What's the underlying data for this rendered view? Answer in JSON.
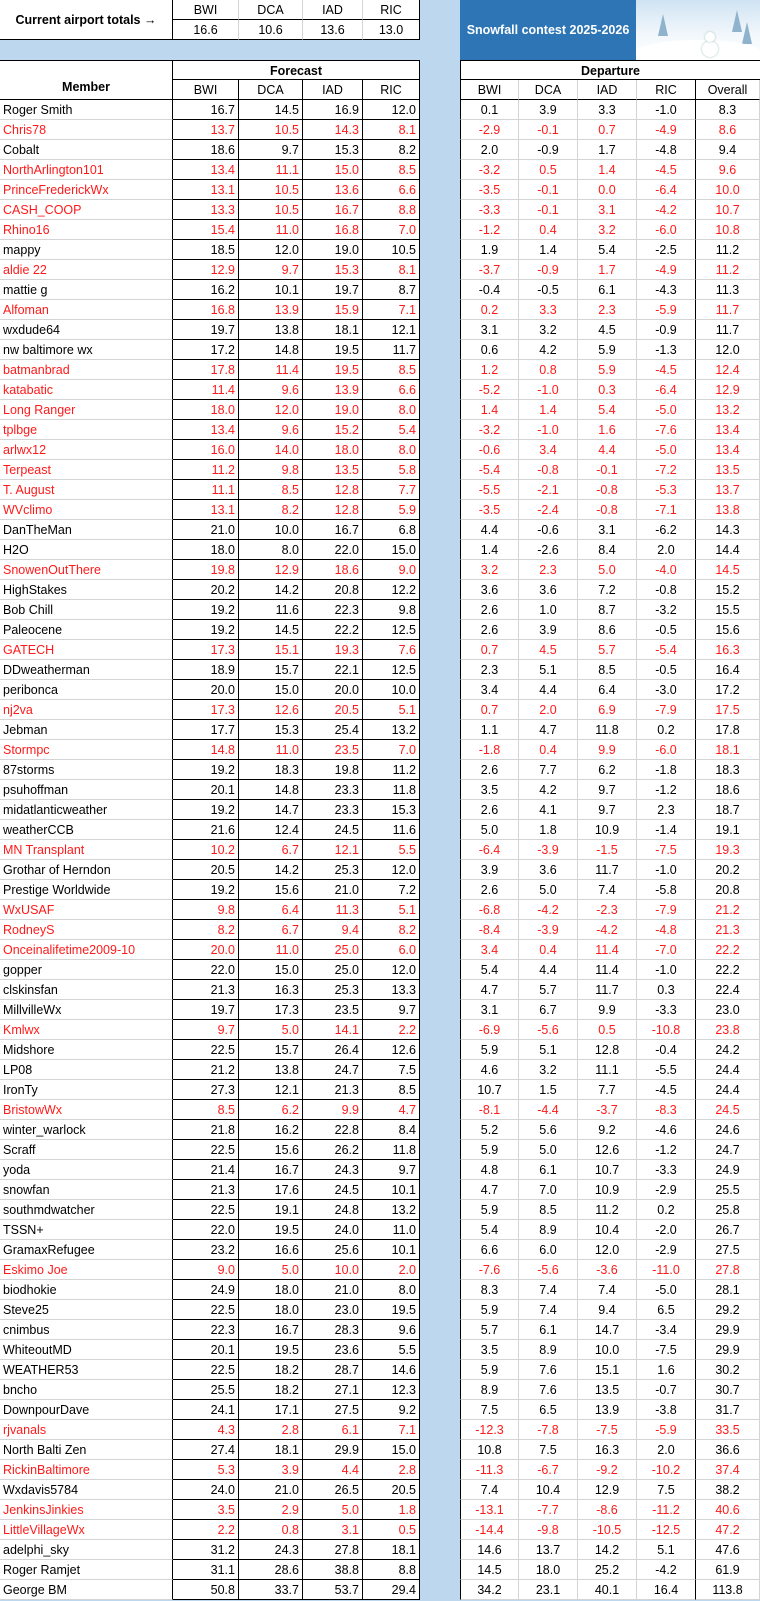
{
  "top": {
    "label": "Current airport totals →",
    "airports": [
      "BWI",
      "DCA",
      "IAD",
      "RIC"
    ],
    "totals": [
      "16.6",
      "10.6",
      "13.6",
      "13.0"
    ]
  },
  "title": "Snowfall contest 2025-2026",
  "header": {
    "member": "Member",
    "forecast": "Forecast",
    "departure": "Departure",
    "forecast_cols": [
      "BWI",
      "DCA",
      "IAD",
      "RIC"
    ],
    "departure_cols": [
      "BWI",
      "DCA",
      "IAD",
      "RIC",
      "Overall"
    ]
  },
  "colors": {
    "red": "#ff1a1a",
    "title_bg": "#2e75b6",
    "gap": "#bdd7ee"
  },
  "rows": [
    {
      "name": "Roger Smith",
      "red": false,
      "f": [
        "16.7",
        "14.5",
        "16.9",
        "12.0"
      ],
      "d": [
        "0.1",
        "3.9",
        "3.3",
        "-1.0",
        "8.3"
      ]
    },
    {
      "name": "Chris78",
      "red": true,
      "f": [
        "13.7",
        "10.5",
        "14.3",
        "8.1"
      ],
      "d": [
        "-2.9",
        "-0.1",
        "0.7",
        "-4.9",
        "8.6"
      ]
    },
    {
      "name": "Cobalt",
      "red": false,
      "f": [
        "18.6",
        "9.7",
        "15.3",
        "8.2"
      ],
      "d": [
        "2.0",
        "-0.9",
        "1.7",
        "-4.8",
        "9.4"
      ]
    },
    {
      "name": "NorthArlington101",
      "red": true,
      "f": [
        "13.4",
        "11.1",
        "15.0",
        "8.5"
      ],
      "d": [
        "-3.2",
        "0.5",
        "1.4",
        "-4.5",
        "9.6"
      ]
    },
    {
      "name": "PrinceFrederickWx",
      "red": true,
      "f": [
        "13.1",
        "10.5",
        "13.6",
        "6.6"
      ],
      "d": [
        "-3.5",
        "-0.1",
        "0.0",
        "-6.4",
        "10.0"
      ]
    },
    {
      "name": "CASH_COOP",
      "red": true,
      "f": [
        "13.3",
        "10.5",
        "16.7",
        "8.8"
      ],
      "d": [
        "-3.3",
        "-0.1",
        "3.1",
        "-4.2",
        "10.7"
      ]
    },
    {
      "name": "Rhino16",
      "red": true,
      "f": [
        "15.4",
        "11.0",
        "16.8",
        "7.0"
      ],
      "d": [
        "-1.2",
        "0.4",
        "3.2",
        "-6.0",
        "10.8"
      ]
    },
    {
      "name": "mappy",
      "red": false,
      "f": [
        "18.5",
        "12.0",
        "19.0",
        "10.5"
      ],
      "d": [
        "1.9",
        "1.4",
        "5.4",
        "-2.5",
        "11.2"
      ]
    },
    {
      "name": "aldie 22",
      "red": true,
      "f": [
        "12.9",
        "9.7",
        "15.3",
        "8.1"
      ],
      "d": [
        "-3.7",
        "-0.9",
        "1.7",
        "-4.9",
        "11.2"
      ]
    },
    {
      "name": "mattie g",
      "red": false,
      "f": [
        "16.2",
        "10.1",
        "19.7",
        "8.7"
      ],
      "d": [
        "-0.4",
        "-0.5",
        "6.1",
        "-4.3",
        "11.3"
      ]
    },
    {
      "name": "Alfoman",
      "red": true,
      "f": [
        "16.8",
        "13.9",
        "15.9",
        "7.1"
      ],
      "d": [
        "0.2",
        "3.3",
        "2.3",
        "-5.9",
        "11.7"
      ]
    },
    {
      "name": "wxdude64",
      "red": false,
      "f": [
        "19.7",
        "13.8",
        "18.1",
        "12.1"
      ],
      "d": [
        "3.1",
        "3.2",
        "4.5",
        "-0.9",
        "11.7"
      ]
    },
    {
      "name": "nw baltimore wx",
      "red": false,
      "f": [
        "17.2",
        "14.8",
        "19.5",
        "11.7"
      ],
      "d": [
        "0.6",
        "4.2",
        "5.9",
        "-1.3",
        "12.0"
      ]
    },
    {
      "name": "batmanbrad",
      "red": true,
      "f": [
        "17.8",
        "11.4",
        "19.5",
        "8.5"
      ],
      "d": [
        "1.2",
        "0.8",
        "5.9",
        "-4.5",
        "12.4"
      ]
    },
    {
      "name": "katabatic",
      "red": true,
      "f": [
        "11.4",
        "9.6",
        "13.9",
        "6.6"
      ],
      "d": [
        "-5.2",
        "-1.0",
        "0.3",
        "-6.4",
        "12.9"
      ]
    },
    {
      "name": "Long Ranger",
      "red": true,
      "f": [
        "18.0",
        "12.0",
        "19.0",
        "8.0"
      ],
      "d": [
        "1.4",
        "1.4",
        "5.4",
        "-5.0",
        "13.2"
      ]
    },
    {
      "name": "tplbge",
      "red": true,
      "f": [
        "13.4",
        "9.6",
        "15.2",
        "5.4"
      ],
      "d": [
        "-3.2",
        "-1.0",
        "1.6",
        "-7.6",
        "13.4"
      ]
    },
    {
      "name": "arlwx12",
      "red": true,
      "f": [
        "16.0",
        "14.0",
        "18.0",
        "8.0"
      ],
      "d": [
        "-0.6",
        "3.4",
        "4.4",
        "-5.0",
        "13.4"
      ]
    },
    {
      "name": "Terpeast",
      "red": true,
      "f": [
        "11.2",
        "9.8",
        "13.5",
        "5.8"
      ],
      "d": [
        "-5.4",
        "-0.8",
        "-0.1",
        "-7.2",
        "13.5"
      ]
    },
    {
      "name": "T. August",
      "red": true,
      "f": [
        "11.1",
        "8.5",
        "12.8",
        "7.7"
      ],
      "d": [
        "-5.5",
        "-2.1",
        "-0.8",
        "-5.3",
        "13.7"
      ]
    },
    {
      "name": "WVclimo",
      "red": true,
      "f": [
        "13.1",
        "8.2",
        "12.8",
        "5.9"
      ],
      "d": [
        "-3.5",
        "-2.4",
        "-0.8",
        "-7.1",
        "13.8"
      ]
    },
    {
      "name": "DanTheMan",
      "red": false,
      "f": [
        "21.0",
        "10.0",
        "16.7",
        "6.8"
      ],
      "d": [
        "4.4",
        "-0.6",
        "3.1",
        "-6.2",
        "14.3"
      ]
    },
    {
      "name": "H2O",
      "red": false,
      "f": [
        "18.0",
        "8.0",
        "22.0",
        "15.0"
      ],
      "d": [
        "1.4",
        "-2.6",
        "8.4",
        "2.0",
        "14.4"
      ]
    },
    {
      "name": "SnowenOutThere",
      "red": true,
      "f": [
        "19.8",
        "12.9",
        "18.6",
        "9.0"
      ],
      "d": [
        "3.2",
        "2.3",
        "5.0",
        "-4.0",
        "14.5"
      ]
    },
    {
      "name": "HighStakes",
      "red": false,
      "f": [
        "20.2",
        "14.2",
        "20.8",
        "12.2"
      ],
      "d": [
        "3.6",
        "3.6",
        "7.2",
        "-0.8",
        "15.2"
      ]
    },
    {
      "name": "Bob Chill",
      "red": false,
      "f": [
        "19.2",
        "11.6",
        "22.3",
        "9.8"
      ],
      "d": [
        "2.6",
        "1.0",
        "8.7",
        "-3.2",
        "15.5"
      ]
    },
    {
      "name": "Paleocene",
      "red": false,
      "f": [
        "19.2",
        "14.5",
        "22.2",
        "12.5"
      ],
      "d": [
        "2.6",
        "3.9",
        "8.6",
        "-0.5",
        "15.6"
      ]
    },
    {
      "name": "GATECH",
      "red": true,
      "f": [
        "17.3",
        "15.1",
        "19.3",
        "7.6"
      ],
      "d": [
        "0.7",
        "4.5",
        "5.7",
        "-5.4",
        "16.3"
      ]
    },
    {
      "name": "DDweatherman",
      "red": false,
      "f": [
        "18.9",
        "15.7",
        "22.1",
        "12.5"
      ],
      "d": [
        "2.3",
        "5.1",
        "8.5",
        "-0.5",
        "16.4"
      ]
    },
    {
      "name": "peribonca",
      "red": false,
      "f": [
        "20.0",
        "15.0",
        "20.0",
        "10.0"
      ],
      "d": [
        "3.4",
        "4.4",
        "6.4",
        "-3.0",
        "17.2"
      ]
    },
    {
      "name": "nj2va",
      "red": true,
      "f": [
        "17.3",
        "12.6",
        "20.5",
        "5.1"
      ],
      "d": [
        "0.7",
        "2.0",
        "6.9",
        "-7.9",
        "17.5"
      ]
    },
    {
      "name": "Jebman",
      "red": false,
      "f": [
        "17.7",
        "15.3",
        "25.4",
        "13.2"
      ],
      "d": [
        "1.1",
        "4.7",
        "11.8",
        "0.2",
        "17.8"
      ]
    },
    {
      "name": "Stormpc",
      "red": true,
      "f": [
        "14.8",
        "11.0",
        "23.5",
        "7.0"
      ],
      "d": [
        "-1.8",
        "0.4",
        "9.9",
        "-6.0",
        "18.1"
      ]
    },
    {
      "name": "87storms",
      "red": false,
      "f": [
        "19.2",
        "18.3",
        "19.8",
        "11.2"
      ],
      "d": [
        "2.6",
        "7.7",
        "6.2",
        "-1.8",
        "18.3"
      ]
    },
    {
      "name": "psuhoffman",
      "red": false,
      "f": [
        "20.1",
        "14.8",
        "23.3",
        "11.8"
      ],
      "d": [
        "3.5",
        "4.2",
        "9.7",
        "-1.2",
        "18.6"
      ]
    },
    {
      "name": "midatlanticweather",
      "red": false,
      "f": [
        "19.2",
        "14.7",
        "23.3",
        "15.3"
      ],
      "d": [
        "2.6",
        "4.1",
        "9.7",
        "2.3",
        "18.7"
      ]
    },
    {
      "name": "weatherCCB",
      "red": false,
      "f": [
        "21.6",
        "12.4",
        "24.5",
        "11.6"
      ],
      "d": [
        "5.0",
        "1.8",
        "10.9",
        "-1.4",
        "19.1"
      ]
    },
    {
      "name": "MN Transplant",
      "red": true,
      "f": [
        "10.2",
        "6.7",
        "12.1",
        "5.5"
      ],
      "d": [
        "-6.4",
        "-3.9",
        "-1.5",
        "-7.5",
        "19.3"
      ]
    },
    {
      "name": "Grothar of Herndon",
      "red": false,
      "f": [
        "20.5",
        "14.2",
        "25.3",
        "12.0"
      ],
      "d": [
        "3.9",
        "3.6",
        "11.7",
        "-1.0",
        "20.2"
      ]
    },
    {
      "name": "Prestige Worldwide",
      "red": false,
      "f": [
        "19.2",
        "15.6",
        "21.0",
        "7.2"
      ],
      "d": [
        "2.6",
        "5.0",
        "7.4",
        "-5.8",
        "20.8"
      ]
    },
    {
      "name": "WxUSAF",
      "red": true,
      "f": [
        "9.8",
        "6.4",
        "11.3",
        "5.1"
      ],
      "d": [
        "-6.8",
        "-4.2",
        "-2.3",
        "-7.9",
        "21.2"
      ]
    },
    {
      "name": "RodneyS",
      "red": true,
      "f": [
        "8.2",
        "6.7",
        "9.4",
        "8.2"
      ],
      "d": [
        "-8.4",
        "-3.9",
        "-4.2",
        "-4.8",
        "21.3"
      ]
    },
    {
      "name": "Onceinalifetime2009-10",
      "red": true,
      "f": [
        "20.0",
        "11.0",
        "25.0",
        "6.0"
      ],
      "d": [
        "3.4",
        "0.4",
        "11.4",
        "-7.0",
        "22.2"
      ]
    },
    {
      "name": "gopper",
      "red": false,
      "f": [
        "22.0",
        "15.0",
        "25.0",
        "12.0"
      ],
      "d": [
        "5.4",
        "4.4",
        "11.4",
        "-1.0",
        "22.2"
      ]
    },
    {
      "name": "clskinsfan",
      "red": false,
      "f": [
        "21.3",
        "16.3",
        "25.3",
        "13.3"
      ],
      "d": [
        "4.7",
        "5.7",
        "11.7",
        "0.3",
        "22.4"
      ]
    },
    {
      "name": "MillvilleWx",
      "red": false,
      "f": [
        "19.7",
        "17.3",
        "23.5",
        "9.7"
      ],
      "d": [
        "3.1",
        "6.7",
        "9.9",
        "-3.3",
        "23.0"
      ]
    },
    {
      "name": "Kmlwx",
      "red": true,
      "f": [
        "9.7",
        "5.0",
        "14.1",
        "2.2"
      ],
      "d": [
        "-6.9",
        "-5.6",
        "0.5",
        "-10.8",
        "23.8"
      ]
    },
    {
      "name": "Midshore",
      "red": false,
      "f": [
        "22.5",
        "15.7",
        "26.4",
        "12.6"
      ],
      "d": [
        "5.9",
        "5.1",
        "12.8",
        "-0.4",
        "24.2"
      ]
    },
    {
      "name": "LP08",
      "red": false,
      "f": [
        "21.2",
        "13.8",
        "24.7",
        "7.5"
      ],
      "d": [
        "4.6",
        "3.2",
        "11.1",
        "-5.5",
        "24.4"
      ]
    },
    {
      "name": "IronTy",
      "red": false,
      "f": [
        "27.3",
        "12.1",
        "21.3",
        "8.5"
      ],
      "d": [
        "10.7",
        "1.5",
        "7.7",
        "-4.5",
        "24.4"
      ]
    },
    {
      "name": "BristowWx",
      "red": true,
      "f": [
        "8.5",
        "6.2",
        "9.9",
        "4.7"
      ],
      "d": [
        "-8.1",
        "-4.4",
        "-3.7",
        "-8.3",
        "24.5"
      ]
    },
    {
      "name": "winter_warlock",
      "red": false,
      "f": [
        "21.8",
        "16.2",
        "22.8",
        "8.4"
      ],
      "d": [
        "5.2",
        "5.6",
        "9.2",
        "-4.6",
        "24.6"
      ]
    },
    {
      "name": "Scraff",
      "red": false,
      "f": [
        "22.5",
        "15.6",
        "26.2",
        "11.8"
      ],
      "d": [
        "5.9",
        "5.0",
        "12.6",
        "-1.2",
        "24.7"
      ]
    },
    {
      "name": "yoda",
      "red": false,
      "f": [
        "21.4",
        "16.7",
        "24.3",
        "9.7"
      ],
      "d": [
        "4.8",
        "6.1",
        "10.7",
        "-3.3",
        "24.9"
      ]
    },
    {
      "name": "snowfan",
      "red": false,
      "f": [
        "21.3",
        "17.6",
        "24.5",
        "10.1"
      ],
      "d": [
        "4.7",
        "7.0",
        "10.9",
        "-2.9",
        "25.5"
      ]
    },
    {
      "name": "southmdwatcher",
      "red": false,
      "f": [
        "22.5",
        "19.1",
        "24.8",
        "13.2"
      ],
      "d": [
        "5.9",
        "8.5",
        "11.2",
        "0.2",
        "25.8"
      ]
    },
    {
      "name": "TSSN+",
      "red": false,
      "f": [
        "22.0",
        "19.5",
        "24.0",
        "11.0"
      ],
      "d": [
        "5.4",
        "8.9",
        "10.4",
        "-2.0",
        "26.7"
      ]
    },
    {
      "name": "GramaxRefugee",
      "red": false,
      "f": [
        "23.2",
        "16.6",
        "25.6",
        "10.1"
      ],
      "d": [
        "6.6",
        "6.0",
        "12.0",
        "-2.9",
        "27.5"
      ]
    },
    {
      "name": "Eskimo Joe",
      "red": true,
      "f": [
        "9.0",
        "5.0",
        "10.0",
        "2.0"
      ],
      "d": [
        "-7.6",
        "-5.6",
        "-3.6",
        "-11.0",
        "27.8"
      ]
    },
    {
      "name": "biodhokie",
      "red": false,
      "f": [
        "24.9",
        "18.0",
        "21.0",
        "8.0"
      ],
      "d": [
        "8.3",
        "7.4",
        "7.4",
        "-5.0",
        "28.1"
      ]
    },
    {
      "name": "Steve25",
      "red": false,
      "f": [
        "22.5",
        "18.0",
        "23.0",
        "19.5"
      ],
      "d": [
        "5.9",
        "7.4",
        "9.4",
        "6.5",
        "29.2"
      ]
    },
    {
      "name": "cnimbus",
      "red": false,
      "f": [
        "22.3",
        "16.7",
        "28.3",
        "9.6"
      ],
      "d": [
        "5.7",
        "6.1",
        "14.7",
        "-3.4",
        "29.9"
      ]
    },
    {
      "name": "WhiteoutMD",
      "red": false,
      "f": [
        "20.1",
        "19.5",
        "23.6",
        "5.5"
      ],
      "d": [
        "3.5",
        "8.9",
        "10.0",
        "-7.5",
        "29.9"
      ]
    },
    {
      "name": "WEATHER53",
      "red": false,
      "f": [
        "22.5",
        "18.2",
        "28.7",
        "14.6"
      ],
      "d": [
        "5.9",
        "7.6",
        "15.1",
        "1.6",
        "30.2"
      ]
    },
    {
      "name": "bncho",
      "red": false,
      "f": [
        "25.5",
        "18.2",
        "27.1",
        "12.3"
      ],
      "d": [
        "8.9",
        "7.6",
        "13.5",
        "-0.7",
        "30.7"
      ]
    },
    {
      "name": "DownpourDave",
      "red": false,
      "f": [
        "24.1",
        "17.1",
        "27.5",
        "9.2"
      ],
      "d": [
        "7.5",
        "6.5",
        "13.9",
        "-3.8",
        "31.7"
      ]
    },
    {
      "name": "rjvanals",
      "red": true,
      "f": [
        "4.3",
        "2.8",
        "6.1",
        "7.1"
      ],
      "d": [
        "-12.3",
        "-7.8",
        "-7.5",
        "-5.9",
        "33.5"
      ]
    },
    {
      "name": "North Balti Zen",
      "red": false,
      "f": [
        "27.4",
        "18.1",
        "29.9",
        "15.0"
      ],
      "d": [
        "10.8",
        "7.5",
        "16.3",
        "2.0",
        "36.6"
      ]
    },
    {
      "name": "RickinBaltimore",
      "red": true,
      "f": [
        "5.3",
        "3.9",
        "4.4",
        "2.8"
      ],
      "d": [
        "-11.3",
        "-6.7",
        "-9.2",
        "-10.2",
        "37.4"
      ]
    },
    {
      "name": "Wxdavis5784",
      "red": false,
      "f": [
        "24.0",
        "21.0",
        "26.5",
        "20.5"
      ],
      "d": [
        "7.4",
        "10.4",
        "12.9",
        "7.5",
        "38.2"
      ]
    },
    {
      "name": "JenkinsJinkies",
      "red": true,
      "f": [
        "3.5",
        "2.9",
        "5.0",
        "1.8"
      ],
      "d": [
        "-13.1",
        "-7.7",
        "-8.6",
        "-11.2",
        "40.6"
      ]
    },
    {
      "name": "LittleVillageWx",
      "red": true,
      "f": [
        "2.2",
        "0.8",
        "3.1",
        "0.5"
      ],
      "d": [
        "-14.4",
        "-9.8",
        "-10.5",
        "-12.5",
        "47.2"
      ]
    },
    {
      "name": "adelphi_sky",
      "red": false,
      "f": [
        "31.2",
        "24.3",
        "27.8",
        "18.1"
      ],
      "d": [
        "14.6",
        "13.7",
        "14.2",
        "5.1",
        "47.6"
      ]
    },
    {
      "name": "Roger Ramjet",
      "red": false,
      "f": [
        "31.1",
        "28.6",
        "38.8",
        "8.8"
      ],
      "d": [
        "14.5",
        "18.0",
        "25.2",
        "-4.2",
        "61.9"
      ]
    },
    {
      "name": "George BM",
      "red": false,
      "f": [
        "50.8",
        "33.7",
        "53.7",
        "29.4"
      ],
      "d": [
        "34.2",
        "23.1",
        "40.1",
        "16.4",
        "113.8"
      ]
    }
  ]
}
